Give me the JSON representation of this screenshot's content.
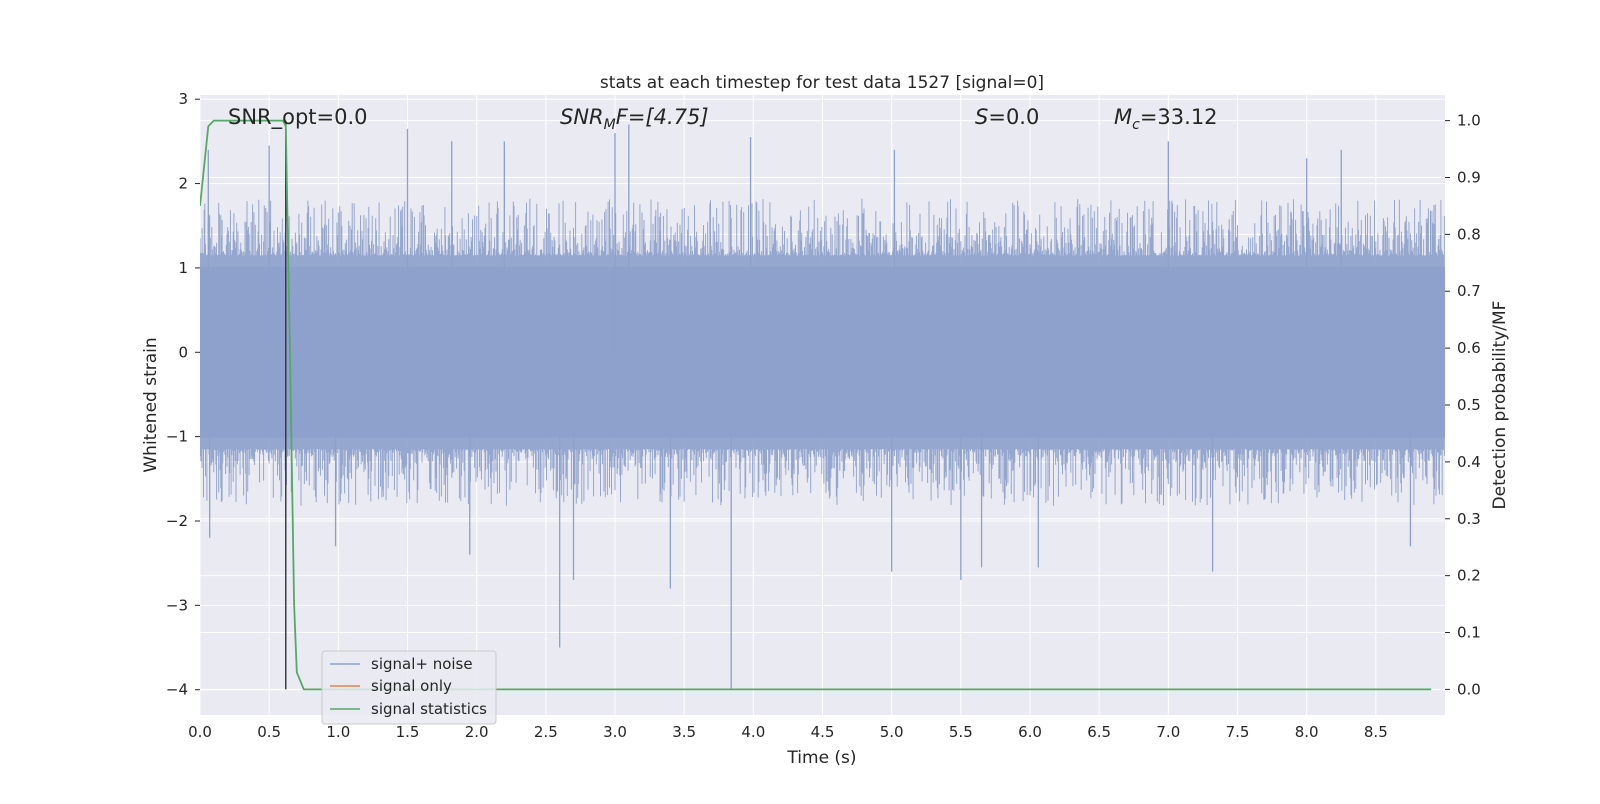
{
  "chart_data": {
    "type": "line",
    "title": "stats at each timestep for test data 1527 [signal=0]",
    "xlabel": "Time (s)",
    "ylabel_left": "Whitened strain",
    "ylabel_right": "Detection probability/MF",
    "xlim": [
      0.0,
      9.0
    ],
    "ylim_left": [
      -4.3,
      3.05
    ],
    "ylim_right": [
      -0.045,
      1.045
    ],
    "x_ticks": [
      "0.0",
      "0.5",
      "1.0",
      "1.5",
      "2.0",
      "2.5",
      "3.0",
      "3.5",
      "4.0",
      "4.5",
      "5.0",
      "5.5",
      "6.0",
      "6.5",
      "7.0",
      "7.5",
      "8.0",
      "8.5"
    ],
    "y_ticks_left": [
      "3",
      "2",
      "1",
      "0",
      "−1",
      "−2",
      "−3",
      "−4"
    ],
    "y_ticks_right": [
      "1.0",
      "0.9",
      "0.8",
      "0.7",
      "0.6",
      "0.5",
      "0.4",
      "0.3",
      "0.2",
      "0.1",
      "0.0"
    ],
    "grid": true,
    "legend_position": "lower-left",
    "colors": {
      "background": "#eaeaf2",
      "grid": "#ffffff",
      "noise": "#8da0cb",
      "signal_only": "#dd8452",
      "statistics": "#55a868",
      "marker_line": "#333333",
      "text": "#262626"
    },
    "annotations": {
      "snr_opt": "SNR_opt=0.0",
      "snr_mf_base": "SNR",
      "snr_mf_sub": "M",
      "snr_mf_rest": "F=[4.75]",
      "s_label": "S",
      "s_value": "=0.0",
      "mc_base": "M",
      "mc_sub": "c",
      "mc_value": "=33.12"
    },
    "marker_time": 0.62,
    "series": [
      {
        "name": "signal+ noise",
        "axis": "left",
        "style": "dense_noise_band",
        "typical_range": [
          -1.35,
          1.35
        ],
        "typical_extremes": [
          -2.0,
          2.0
        ],
        "spikes": [
          {
            "x": 0.06,
            "y": 2.4
          },
          {
            "x": 0.07,
            "y": -2.2
          },
          {
            "x": 0.5,
            "y": 2.45
          },
          {
            "x": 0.98,
            "y": -2.3
          },
          {
            "x": 1.5,
            "y": 2.65
          },
          {
            "x": 1.82,
            "y": 2.5
          },
          {
            "x": 1.95,
            "y": -2.4
          },
          {
            "x": 2.2,
            "y": 2.5
          },
          {
            "x": 2.6,
            "y": -3.5
          },
          {
            "x": 2.7,
            "y": -2.7
          },
          {
            "x": 3.0,
            "y": 2.6
          },
          {
            "x": 3.1,
            "y": 2.7
          },
          {
            "x": 3.4,
            "y": -2.8
          },
          {
            "x": 3.84,
            "y": -4.0
          },
          {
            "x": 3.98,
            "y": 2.55
          },
          {
            "x": 5.0,
            "y": -2.6
          },
          {
            "x": 5.02,
            "y": 2.4
          },
          {
            "x": 5.5,
            "y": -2.7
          },
          {
            "x": 5.65,
            "y": -2.55
          },
          {
            "x": 6.06,
            "y": -2.55
          },
          {
            "x": 7.0,
            "y": 2.5
          },
          {
            "x": 7.32,
            "y": -2.6
          },
          {
            "x": 8.0,
            "y": 2.3
          },
          {
            "x": 8.25,
            "y": 2.4
          },
          {
            "x": 8.75,
            "y": -2.3
          }
        ]
      },
      {
        "name": "signal only",
        "axis": "left",
        "points": []
      },
      {
        "name": "signal statistics",
        "axis": "right",
        "x": [
          0.0,
          0.06,
          0.1,
          0.2,
          0.3,
          0.4,
          0.5,
          0.55,
          0.6,
          0.61,
          0.62,
          0.65,
          0.68,
          0.7,
          0.75,
          8.9
        ],
        "y": [
          0.85,
          0.99,
          1.0,
          1.0,
          1.0,
          1.0,
          1.0,
          1.0,
          1.0,
          0.995,
          0.99,
          0.6,
          0.15,
          0.03,
          0.0,
          0.0
        ]
      }
    ]
  }
}
